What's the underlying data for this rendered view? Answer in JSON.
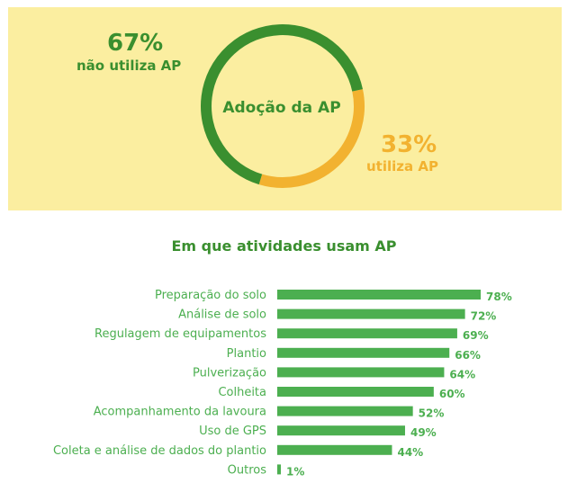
{
  "chart_data": [
    {
      "type": "pie",
      "title": "Adoção da AP",
      "slices": [
        {
          "name": "não utiliza AP",
          "value": 67,
          "value_label": "67%",
          "color": "#3a8f2f"
        },
        {
          "name": "utiliza AP",
          "value": 33,
          "value_label": "33%",
          "color": "#f2b230"
        }
      ]
    },
    {
      "type": "bar",
      "orientation": "horizontal",
      "title": "Em que atividades usam AP",
      "categories": [
        "Preparação do solo",
        "Análise de solo",
        "Regulagem de equipamentos",
        "Plantio",
        "Pulverização",
        "Colheita",
        "Acompanhamento da lavoura",
        "Uso de GPS",
        "Coleta e análise de dados do plantio",
        "Outros"
      ],
      "values": [
        78,
        72,
        69,
        66,
        64,
        60,
        52,
        49,
        44,
        1
      ],
      "value_labels": [
        "78%",
        "72%",
        "69%",
        "66%",
        "64%",
        "60%",
        "52%",
        "49%",
        "44%",
        "1%"
      ],
      "bar_color": "#4caf50",
      "label_color": "#4caf50"
    }
  ]
}
